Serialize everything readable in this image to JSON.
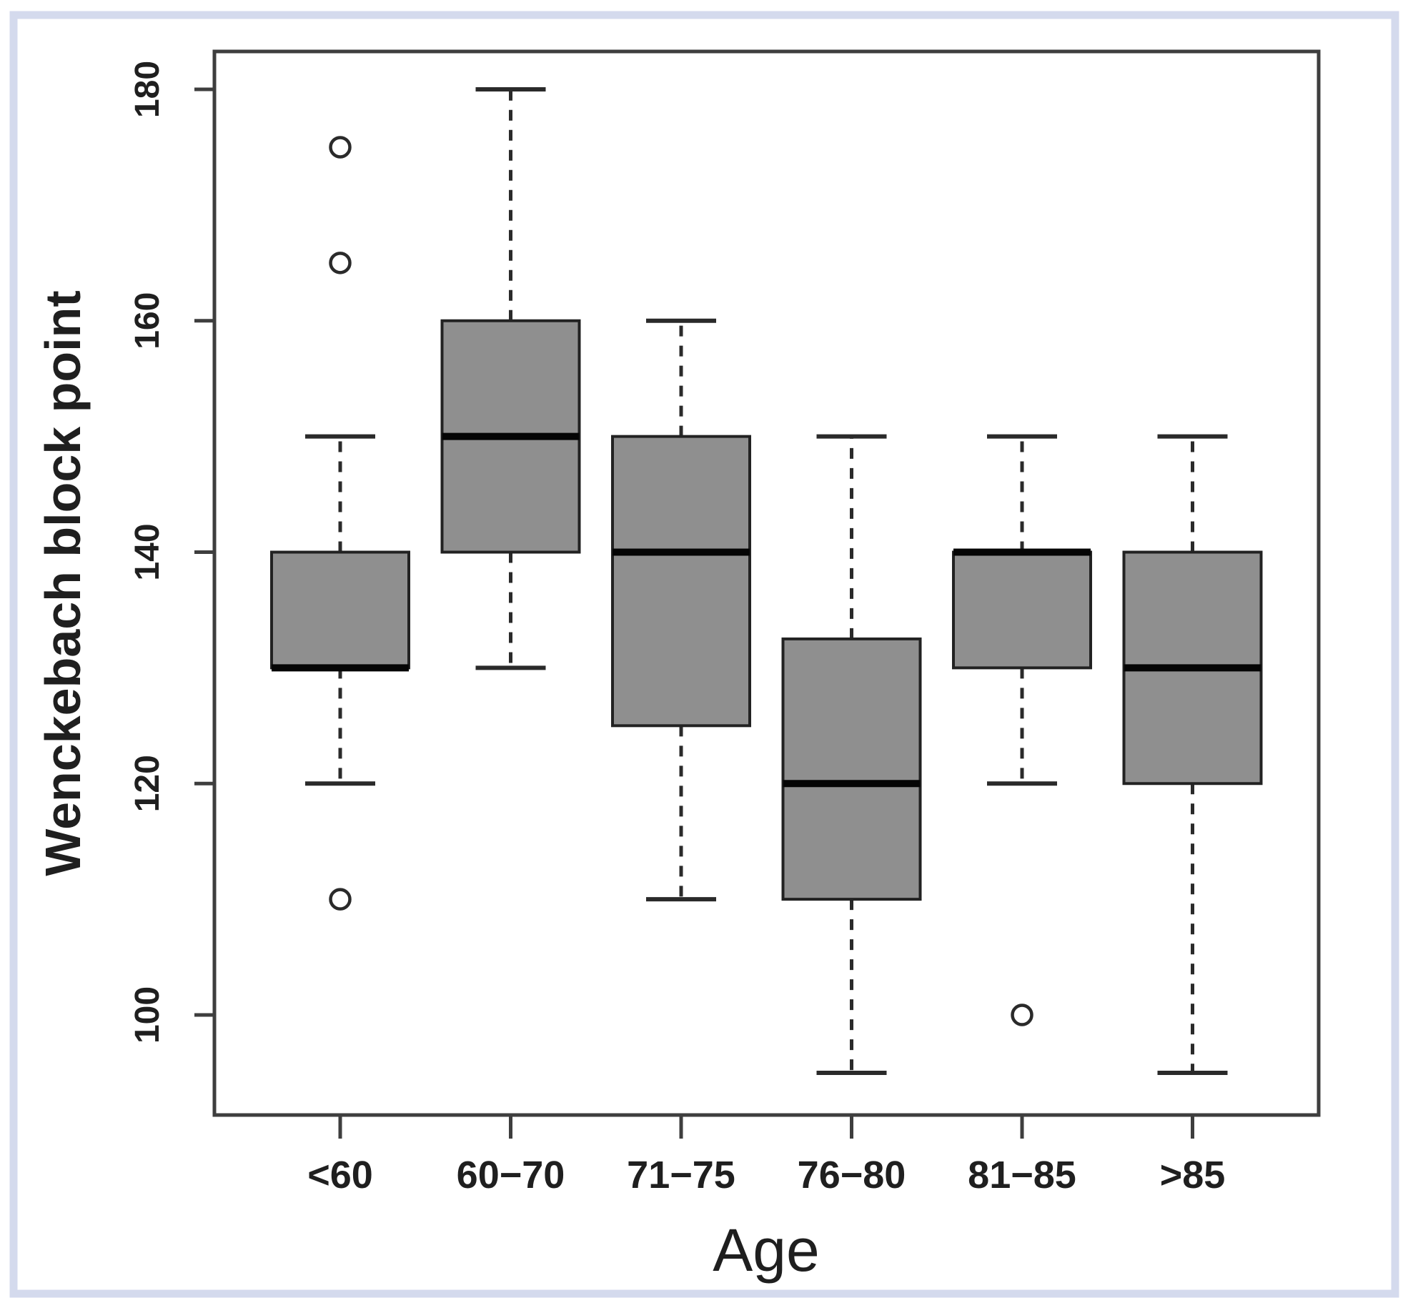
{
  "figure": {
    "xlabel": "Age",
    "ylabel": "Wenckebach block point"
  },
  "colors": {
    "background": "#ffffff",
    "frame_border": "#d4daed",
    "axis": "#3e3e3e",
    "text": "#1f1f1f",
    "box_fill": "#8f8f8f",
    "box_stroke": "#222222",
    "median": "#050505",
    "whisker": "#2a2a2a"
  },
  "chart_data": {
    "type": "boxplot",
    "title": "",
    "xlabel": "Age",
    "ylabel": "Wenckebach block point",
    "categories": [
      "<60",
      "60−70",
      "71−75",
      "76−80",
      "81−85",
      ">85"
    ],
    "y_ticks": [
      100,
      120,
      140,
      160,
      180
    ],
    "ylim": [
      91.4,
      183.4
    ],
    "grid": false,
    "legend": "none",
    "series": [
      {
        "category": "<60",
        "whisker_low": 120,
        "q1": 130,
        "median": 130,
        "q3": 140,
        "whisker_high": 150,
        "outliers": [
          110,
          165,
          175
        ]
      },
      {
        "category": "60−70",
        "whisker_low": 130,
        "q1": 140,
        "median": 150,
        "q3": 160,
        "whisker_high": 180,
        "outliers": []
      },
      {
        "category": "71−75",
        "whisker_low": 110,
        "q1": 125,
        "median": 140,
        "q3": 150,
        "whisker_high": 160,
        "outliers": []
      },
      {
        "category": "76−80",
        "whisker_low": 95,
        "q1": 110,
        "median": 120,
        "q3": 132.5,
        "whisker_high": 150,
        "outliers": []
      },
      {
        "category": "81−85",
        "whisker_low": 120,
        "q1": 130,
        "median": 140,
        "q3": 140,
        "whisker_high": 150,
        "outliers": [
          100
        ]
      },
      {
        "category": ">85",
        "whisker_low": 95,
        "q1": 120,
        "median": 130,
        "q3": 140,
        "whisker_high": 150,
        "outliers": []
      }
    ]
  }
}
